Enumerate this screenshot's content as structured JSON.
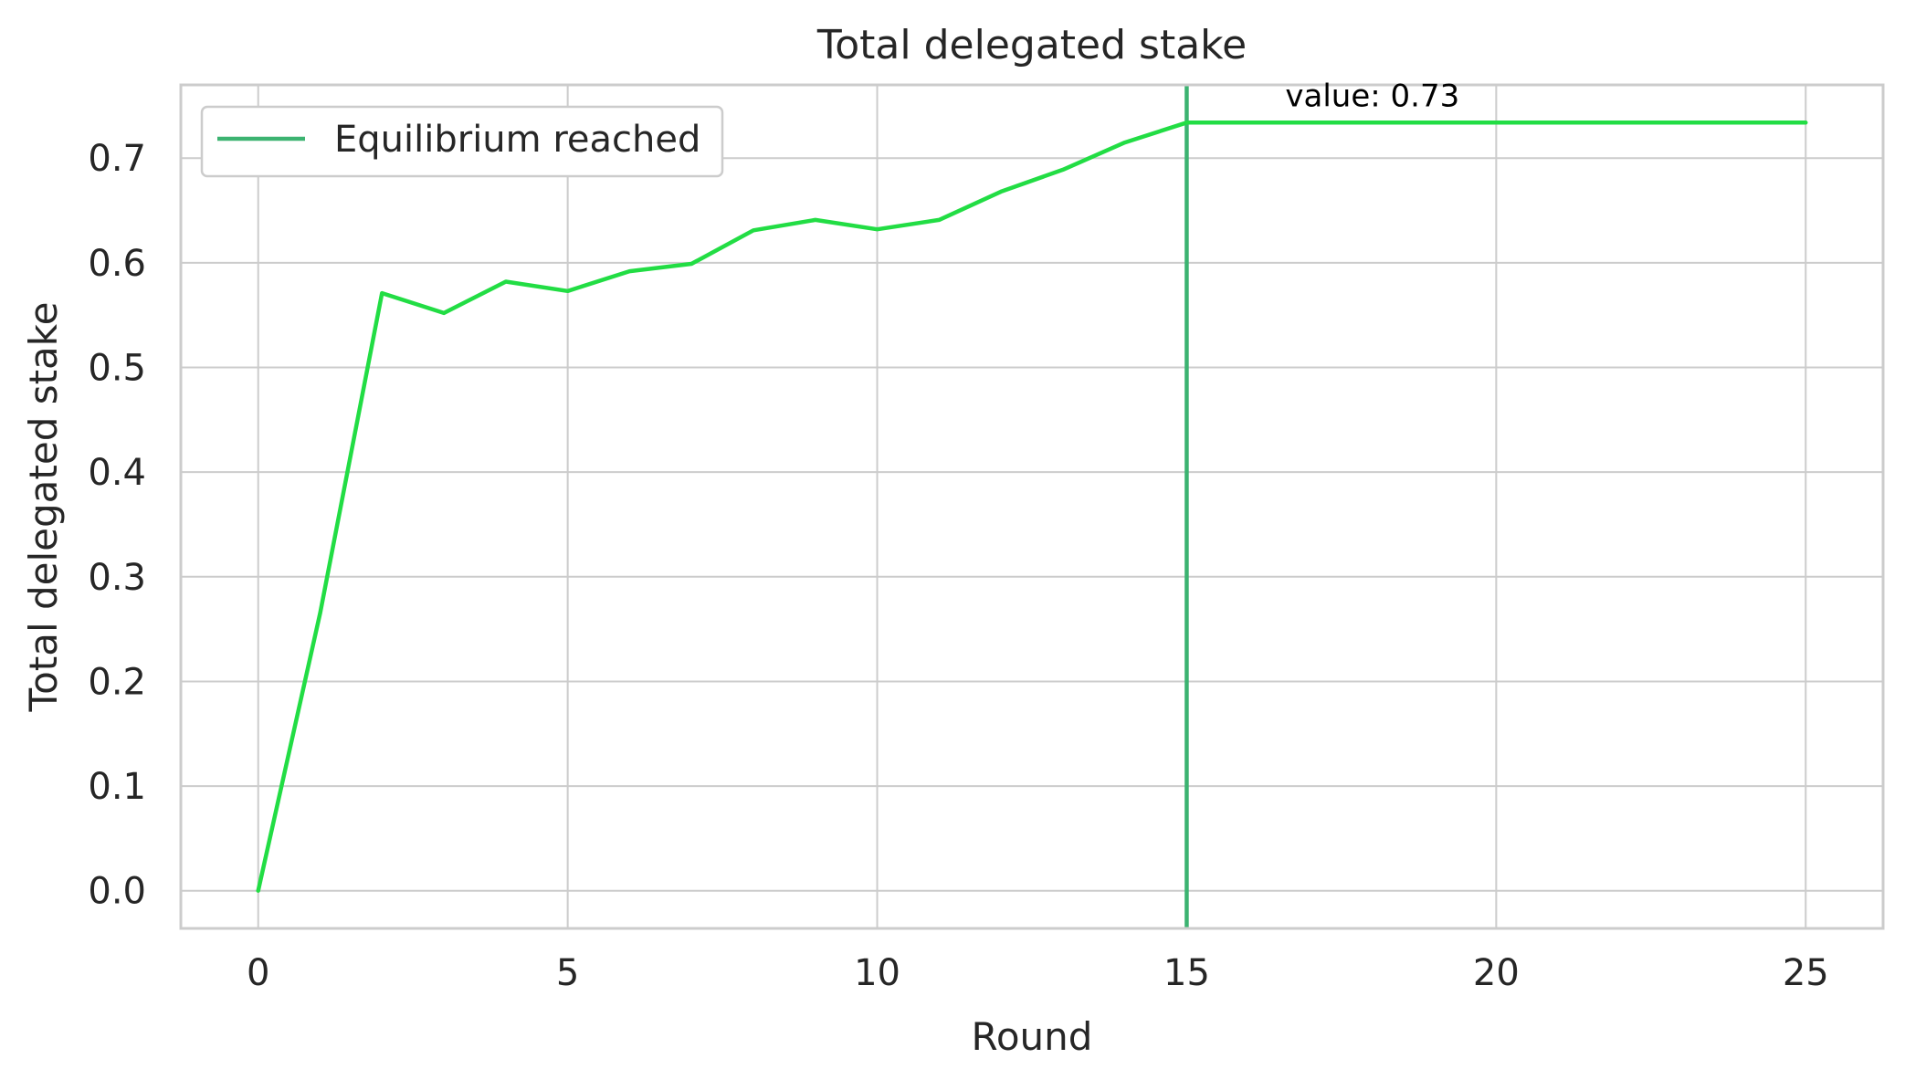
{
  "chart_data": {
    "type": "line",
    "title": "Total delegated stake",
    "xlabel": "Round",
    "ylabel": "Total delegated stake",
    "xlim": [
      -1.25,
      26.25
    ],
    "ylim": [
      -0.036,
      0.77
    ],
    "x_ticks": [
      0,
      5,
      10,
      15,
      20,
      25
    ],
    "y_ticks": [
      0.0,
      0.1,
      0.2,
      0.3,
      0.4,
      0.5,
      0.6,
      0.7
    ],
    "y_tick_labels": [
      "0.0",
      "0.1",
      "0.2",
      "0.3",
      "0.4",
      "0.5",
      "0.6",
      "0.7"
    ],
    "grid": true,
    "legend_position": "top-left",
    "series": [
      {
        "x": [
          0,
          1,
          2,
          3,
          4,
          5,
          6,
          7,
          8,
          9,
          10,
          11,
          12,
          13,
          14,
          15,
          16,
          17,
          18,
          19,
          20,
          21,
          22,
          23,
          24,
          25
        ],
        "values": [
          0.0,
          0.265,
          0.571,
          0.552,
          0.582,
          0.573,
          0.592,
          0.599,
          0.631,
          0.641,
          0.632,
          0.641,
          0.668,
          0.689,
          0.715,
          0.734,
          0.734,
          0.734,
          0.734,
          0.734,
          0.734,
          0.734,
          0.734,
          0.734,
          0.734,
          0.734
        ],
        "color": "#22dd44"
      }
    ],
    "vertical_line": {
      "x": 15,
      "name": "Equilibrium reached",
      "color": "#3cb371"
    },
    "annotation": {
      "text": "value: 0.73",
      "x": 18,
      "y": 0.76
    }
  }
}
